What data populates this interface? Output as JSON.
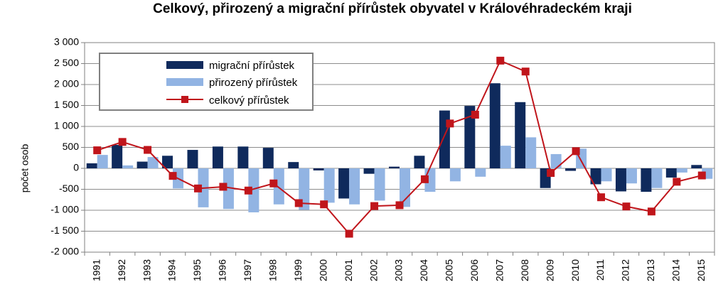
{
  "chart_data": {
    "type": "bar",
    "title": "Celkový, přirozený a migrační přírůstek obyvatel v Královéhradeckém kraji",
    "ylabel": "počet osob",
    "xlabel": "",
    "ylim": [
      -2000,
      3000
    ],
    "yticks": [
      3000,
      2500,
      2000,
      1500,
      1000,
      500,
      0,
      -500,
      -1000,
      -1500,
      -2000
    ],
    "ytick_labels": [
      "3 000",
      "2 500",
      "2 000",
      "1 500",
      "1 000",
      "500",
      "0",
      "-500",
      "-1 000",
      "-1 500",
      "-2 000"
    ],
    "grid": true,
    "legend_position": "top-left",
    "categories": [
      "1991",
      "1992",
      "1993",
      "1994",
      "1995",
      "1996",
      "1997",
      "1998",
      "1999",
      "2000",
      "2001",
      "2002",
      "2003",
      "2004",
      "2005",
      "2006",
      "2007",
      "2008",
      "2009",
      "2010",
      "2011",
      "2012",
      "2013",
      "2014",
      "2015"
    ],
    "series": [
      {
        "name": "migrační přírůstek",
        "type": "bar",
        "color": "#0f2a5c",
        "values": [
          120,
          560,
          160,
          300,
          440,
          520,
          520,
          490,
          150,
          -50,
          -720,
          -130,
          40,
          300,
          1380,
          1490,
          2030,
          1580,
          -470,
          -60,
          -380,
          -550,
          -560,
          -220,
          80
        ]
      },
      {
        "name": "přirozený přírůstek",
        "type": "bar",
        "color": "#92b4e3",
        "values": [
          320,
          70,
          270,
          -480,
          -930,
          -970,
          -1050,
          -860,
          -990,
          -820,
          -860,
          -770,
          -920,
          -560,
          -310,
          -200,
          540,
          740,
          340,
          470,
          -310,
          -360,
          -470,
          -100,
          -250
        ]
      },
      {
        "name": "celkový přírůstek",
        "type": "line",
        "color": "#c0151b",
        "values": [
          430,
          630,
          440,
          -180,
          -480,
          -440,
          -530,
          -360,
          -830,
          -860,
          -1560,
          -900,
          -880,
          -260,
          1070,
          1280,
          2570,
          2310,
          -110,
          410,
          -690,
          -910,
          -1030,
          -320,
          -170
        ]
      }
    ]
  }
}
